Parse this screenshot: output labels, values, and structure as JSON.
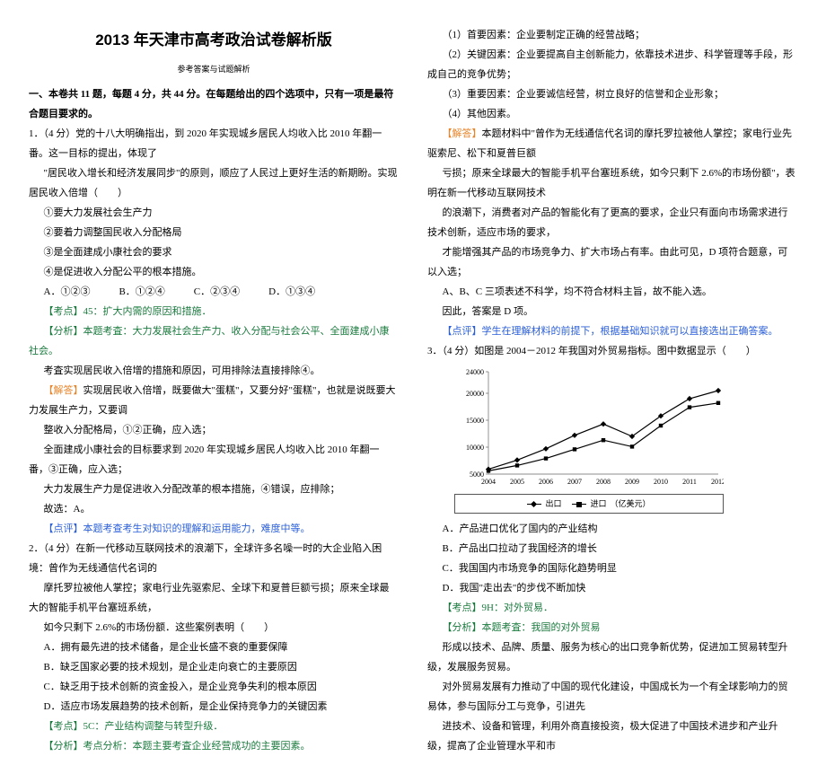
{
  "header": {
    "title": "2013 年天津市高考政治试卷解析版",
    "subtitle": "参考答案与试题解析"
  },
  "left": {
    "section": "一、本卷共 11 题，每题 4 分，共 44 分。在每题给出的四个选项中，只有一项是最符合题目要求的。",
    "q1_stem_a": "1．（4 分）党的十八大明确指出，到 2020 年实现城乡居民人均收入比 2010 年翻一番。这一目标的提出，体现了",
    "q1_stem_b": "\"居民收入增长和经济发展同步\"的原则，顺应了人民过上更好生活的新期盼。实现居民收入倍增（　　）",
    "q1_opt1": "①要大力发展社会生产力",
    "q1_opt2": "②要着力调整国民收入分配格局",
    "q1_opt3": "③是全面建成小康社会的要求",
    "q1_opt4": "④是促进收入分配公平的根本措施。",
    "q1_choices": {
      "A": "A．①②③",
      "B": "B．①②④",
      "C": "C．②③④",
      "D": "D．①③④"
    },
    "q1_kd": "【考点】45：扩大内需的原因和措施．",
    "q1_fx_a": "【分析】本题考査：大力发展社会生产力、收入分配与社会公平、全面建成小康社会。",
    "q1_fx_b": "考査实现居民收入倍增的措施和原因，可用排除法直接排除④。",
    "q1_jd_a": "【解答】实现居民收入倍增，既要做大\"蛋糕\"，又要分好\"蛋糕\"，也就是说既要大力发展生产力，又要调",
    "q1_jd_b": "整收入分配格局，①②正确，应入选；",
    "q1_jd_c": "全面建成小康社会的目标要求到 2020 年实现城乡居民人均收入比 2010 年翻一番，③正确，应入选；",
    "q1_jd_d": "大力发展生产力是促进收入分配改革的根本措施，④错误，应排除；",
    "q1_jd_e": "故选：A。",
    "q1_dp": "【点评】本题考查考生对知识的理解和运用能力，难度中等。",
    "q2_stem_a": "2．（4 分）在新一代移动互联网技术的浪潮下，全球许多名噪一时的大企业陷入困境：曾作为无线通信代名词的",
    "q2_stem_b": "摩托罗拉被他人掌控；家电行业先驱索尼、全球下和夏普巨额亏损；原来全球最大的智能手机平台塞班系统，",
    "q2_stem_c": "如今只剩下 2.6%的市场份额．这些案例表明（　　）",
    "q2_A": "A．拥有最先进的技术储备，是企业长盛不衰的重要保障",
    "q2_B": "B．缺乏国家必要的技术规划，是企业走向衰亡的主要原因",
    "q2_C": "C．缺乏用于技术创新的资金投入，是企业竞争失利的根本原因",
    "q2_D": "D．适应市场发展趋势的技术创新，是企业保持竞争力的关键因素",
    "q2_kd": "【考点】5C：产业结构调整与转型升级．",
    "q2_fx": "【分析】考点分析：本题主要考査企业经营成功的主要因素。"
  },
  "right": {
    "r1": "（1）首要因素：企业要制定正确的经营战略；",
    "r2": "（2）关键因素：企业要提高自主创新能力，依靠技术进步、科学管理等手段，形成自己的竞争优势；",
    "r3": "（3）重要因素：企业要诚信经营，树立良好的信誉和企业形象；",
    "r4": "（4）其他因素。",
    "r_jd_a": "【解答】本题材料中\"曾作为无线通信代名词的摩托罗拉被他人掌控；家电行业先驱索尼、松下和夏普巨额",
    "r_jd_b": "亏损；原来全球最大的智能手机平台塞班系统，如今只剩下 2.6%的市场份额\"，表明在新一代移动互联网技术",
    "r_jd_c": "的浪潮下，消费者对产品的智能化有了更高的要求，企业只有面向市场需求进行技术创新，适应市场的要求，",
    "r_jd_d": "才能增强其产品的市场竞争力、扩大市场占有率。由此可见，D 项符合题意，可以入选；",
    "r_jd_e": "A、B、C 三项表述不科学，均不符合材料主旨，故不能入选。",
    "r_jd_f": "因此，答案是 D 项。",
    "r_dp": "【点评】学生在理解材料的前提下，根据基础知识就可以直接选出正确答案。",
    "q3_stem": "3．（4 分）如图是 2004－2012 年我国对外贸易指标。图中数据显示（　　）",
    "chart": {
      "type": "line",
      "xcats": [
        "2004",
        "2005",
        "2006",
        "2007",
        "2008",
        "2009",
        "2010",
        "2011",
        "2012"
      ],
      "series": [
        {
          "name": "出口",
          "marker": "diamond",
          "values": [
            5900,
            7600,
            9700,
            12200,
            14300,
            12000,
            15800,
            19000,
            20500
          ]
        },
        {
          "name": "进口",
          "marker": "square",
          "values": [
            5600,
            6600,
            7900,
            9600,
            11300,
            10100,
            14000,
            17400,
            18200
          ]
        }
      ],
      "ylim": [
        5000,
        24000
      ],
      "yticks": [
        5000,
        10000,
        15000,
        20000,
        24000
      ],
      "line_color": "#000000",
      "bg": "#ffffff",
      "grid_color": "#666666",
      "font_size": 8,
      "y_label_unit": "（亿美元）",
      "legend_out": "出口",
      "legend_in": "进口"
    },
    "q3_A": "A．产品进口优化了国内的产业结构",
    "q3_B": "B．产品出口拉动了我国经济的增长",
    "q3_C": "C．我国国内市场竞争的国际化趋势明显",
    "q3_D": "D．我国\"走出去\"的步伐不断加快",
    "q3_kd": "【考点】9H：对外贸易．",
    "q3_fx": "【分析】本题考査：我国的对外贸易",
    "q3_p1": "形成以技术、品牌、质量、服务为核心的出口竞争新优势，促进加工贸易转型升级，发展服务贸易。",
    "q3_p2": "对外贸易发展有力推动了中国的现代化建设，中国成长为一个有全球影响力的贸易体，参与国际分工与竞争，引进先",
    "q3_p3": "进技术、设备和管理，利用外商直接投资，极大促进了中国技术进步和产业升级，提高了企业管理水平和市"
  }
}
